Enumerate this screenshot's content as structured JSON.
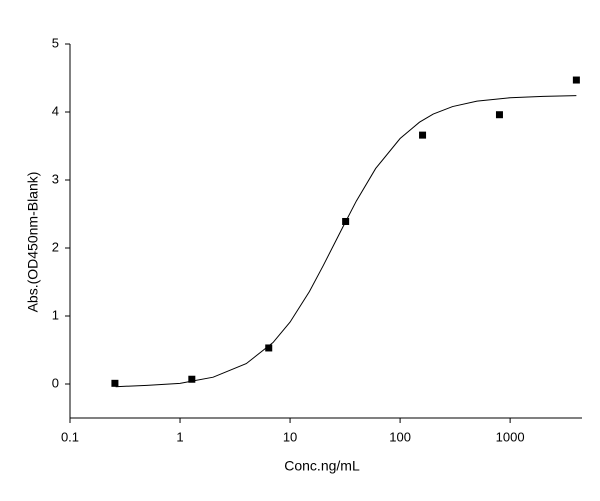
{
  "chart_data": {
    "type": "scatter",
    "x_label": "Conc.ng/mL",
    "y_label": "Abs.(OD450nm-Blank)",
    "x_scale": "log",
    "xlim": [
      0.1,
      4500
    ],
    "xticks": [
      0.1,
      1,
      10,
      100,
      1000
    ],
    "ylim": [
      -0.5,
      5
    ],
    "yticks": [
      0,
      1,
      2,
      3,
      4,
      5
    ],
    "series": [
      {
        "type": "scatter",
        "color": "#000000",
        "x": [
          0.256,
          1.28,
          6.4,
          32,
          160,
          800,
          4000
        ],
        "values": [
          0.01,
          0.07,
          0.53,
          2.39,
          3.66,
          3.96,
          4.47
        ]
      },
      {
        "type": "line",
        "color": "#000000",
        "x": [
          0.26,
          0.5,
          1,
          2,
          4,
          7,
          10,
          15,
          20,
          30,
          40,
          60,
          100,
          150,
          200,
          300,
          500,
          1000,
          2000,
          4000
        ],
        "values": [
          -0.04,
          -0.02,
          0.01,
          0.1,
          0.3,
          0.61,
          0.91,
          1.36,
          1.74,
          2.3,
          2.69,
          3.17,
          3.61,
          3.85,
          3.97,
          4.08,
          4.16,
          4.21,
          4.23,
          4.24
        ]
      }
    ]
  }
}
